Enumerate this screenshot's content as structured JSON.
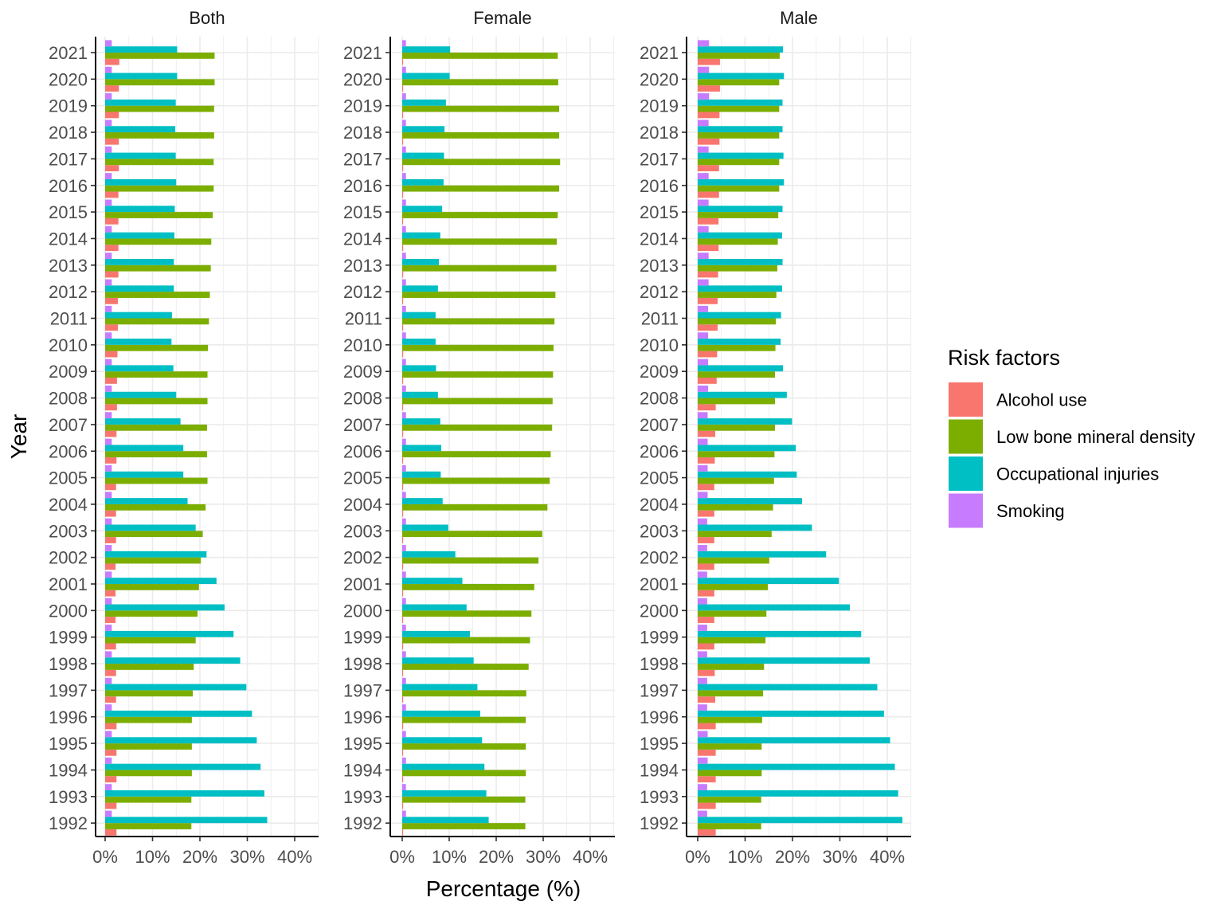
{
  "chart_data": {
    "type": "bar",
    "orientation": "horizontal",
    "xlabel": "Percentage (%)",
    "ylabel": "Year",
    "xlim": [
      0,
      45
    ],
    "x_ticks": [
      0,
      10,
      20,
      30,
      40
    ],
    "x_tick_labels": [
      "0%",
      "10%",
      "20%",
      "30%",
      "40%"
    ],
    "categories": [
      "1992",
      "1993",
      "1994",
      "1995",
      "1996",
      "1997",
      "1998",
      "1999",
      "2000",
      "2001",
      "2002",
      "2003",
      "2004",
      "2005",
      "2006",
      "2007",
      "2008",
      "2009",
      "2010",
      "2011",
      "2012",
      "2013",
      "2014",
      "2015",
      "2016",
      "2017",
      "2018",
      "2019",
      "2020",
      "2021"
    ],
    "legend": {
      "title": "Risk factors",
      "placement": "right",
      "entries": [
        "Alcohol use",
        "Low bone mineral density",
        "Occupational injuries",
        "Smoking"
      ]
    },
    "series_colors": {
      "Alcohol use": "#F8766D",
      "Low bone mineral density": "#7CAE00",
      "Occupational injuries": "#00BFC4",
      "Smoking": "#C77CFF"
    },
    "facets": [
      {
        "title": "Both",
        "series": [
          {
            "name": "Alcohol use",
            "values": [
              2.4,
              2.4,
              2.4,
              2.4,
              2.4,
              2.3,
              2.3,
              2.3,
              2.2,
              2.2,
              2.2,
              2.3,
              2.3,
              2.3,
              2.4,
              2.4,
              2.5,
              2.5,
              2.6,
              2.7,
              2.7,
              2.8,
              2.8,
              2.8,
              2.8,
              2.9,
              2.9,
              2.9,
              2.9,
              3.0
            ]
          },
          {
            "name": "Low bone mineral density",
            "values": [
              18.2,
              18.2,
              18.3,
              18.3,
              18.3,
              18.5,
              18.7,
              19.1,
              19.5,
              19.8,
              20.2,
              20.6,
              21.2,
              21.6,
              21.5,
              21.5,
              21.6,
              21.6,
              21.7,
              21.9,
              22.1,
              22.3,
              22.4,
              22.7,
              22.9,
              22.9,
              23.0,
              23.0,
              23.1,
              23.1
            ]
          },
          {
            "name": "Occupational injuries",
            "values": [
              34.2,
              33.6,
              32.8,
              32.0,
              31.0,
              29.8,
              28.5,
              27.1,
              25.2,
              23.5,
              21.4,
              19.1,
              17.4,
              16.5,
              16.5,
              15.9,
              15.0,
              14.4,
              14.0,
              14.1,
              14.5,
              14.5,
              14.6,
              14.7,
              15.0,
              14.9,
              14.8,
              14.9,
              15.2,
              15.2
            ]
          },
          {
            "name": "Smoking",
            "values": [
              1.4,
              1.4,
              1.4,
              1.4,
              1.4,
              1.4,
              1.4,
              1.4,
              1.4,
              1.4,
              1.4,
              1.4,
              1.4,
              1.4,
              1.4,
              1.4,
              1.4,
              1.4,
              1.4,
              1.4,
              1.4,
              1.4,
              1.4,
              1.4,
              1.4,
              1.4,
              1.4,
              1.4,
              1.4,
              1.4
            ]
          }
        ]
      },
      {
        "title": "Female",
        "series": [
          {
            "name": "Alcohol use",
            "values": [
              0.2,
              0.2,
              0.2,
              0.2,
              0.2,
              0.2,
              0.2,
              0.2,
              0.2,
              0.2,
              0.2,
              0.2,
              0.2,
              0.2,
              0.2,
              0.2,
              0.2,
              0.2,
              0.2,
              0.2,
              0.2,
              0.2,
              0.2,
              0.2,
              0.2,
              0.2,
              0.2,
              0.2,
              0.2,
              0.2
            ]
          },
          {
            "name": "Low bone mineral density",
            "values": [
              26.2,
              26.2,
              26.3,
              26.3,
              26.3,
              26.4,
              26.9,
              27.2,
              27.5,
              28.1,
              29.0,
              29.8,
              30.9,
              31.4,
              31.6,
              31.9,
              32.0,
              32.1,
              32.2,
              32.4,
              32.6,
              32.8,
              32.9,
              33.1,
              33.4,
              33.6,
              33.4,
              33.4,
              33.2,
              33.1
            ]
          },
          {
            "name": "Occupational injuries",
            "values": [
              18.4,
              17.9,
              17.5,
              17.0,
              16.6,
              16.0,
              15.2,
              14.4,
              13.7,
              12.8,
              11.3,
              9.8,
              8.6,
              8.2,
              8.3,
              8.1,
              7.6,
              7.2,
              7.1,
              7.1,
              7.6,
              7.8,
              8.1,
              8.5,
              8.8,
              8.9,
              9.0,
              9.3,
              10.1,
              10.2
            ]
          },
          {
            "name": "Smoking",
            "values": [
              0.8,
              0.8,
              0.8,
              0.8,
              0.8,
              0.8,
              0.8,
              0.8,
              0.8,
              0.8,
              0.8,
              0.8,
              0.8,
              0.8,
              0.8,
              0.8,
              0.8,
              0.8,
              0.8,
              0.8,
              0.8,
              0.8,
              0.8,
              0.8,
              0.8,
              0.8,
              0.8,
              0.8,
              0.8,
              0.8
            ]
          }
        ]
      },
      {
        "title": "Male",
        "series": [
          {
            "name": "Alcohol use",
            "values": [
              3.8,
              3.8,
              3.8,
              3.8,
              3.8,
              3.7,
              3.6,
              3.5,
              3.5,
              3.5,
              3.5,
              3.5,
              3.5,
              3.5,
              3.6,
              3.7,
              3.8,
              4.0,
              4.1,
              4.2,
              4.2,
              4.3,
              4.4,
              4.4,
              4.5,
              4.5,
              4.6,
              4.6,
              4.7,
              4.7
            ]
          },
          {
            "name": "Low bone mineral density",
            "values": [
              13.4,
              13.4,
              13.5,
              13.5,
              13.6,
              13.8,
              14.0,
              14.3,
              14.5,
              14.8,
              15.1,
              15.6,
              15.9,
              16.1,
              16.2,
              16.3,
              16.3,
              16.3,
              16.4,
              16.5,
              16.6,
              16.8,
              16.9,
              17.0,
              17.2,
              17.2,
              17.2,
              17.2,
              17.2,
              17.3
            ]
          },
          {
            "name": "Occupational injuries",
            "values": [
              43.2,
              42.3,
              41.6,
              40.6,
              39.3,
              37.9,
              36.3,
              34.5,
              32.1,
              29.8,
              27.1,
              24.1,
              22.0,
              20.9,
              20.7,
              19.9,
              18.8,
              18.0,
              17.5,
              17.6,
              17.8,
              17.9,
              17.8,
              17.9,
              18.2,
              18.1,
              17.9,
              17.9,
              18.2,
              18.0
            ]
          },
          {
            "name": "Smoking",
            "values": [
              2.0,
              2.0,
              2.1,
              2.1,
              2.0,
              2.0,
              2.0,
              2.0,
              2.0,
              2.0,
              2.0,
              2.0,
              2.1,
              2.1,
              2.1,
              2.1,
              2.2,
              2.2,
              2.2,
              2.2,
              2.3,
              2.3,
              2.3,
              2.3,
              2.3,
              2.3,
              2.3,
              2.4,
              2.4,
              2.4
            ]
          }
        ]
      }
    ]
  }
}
